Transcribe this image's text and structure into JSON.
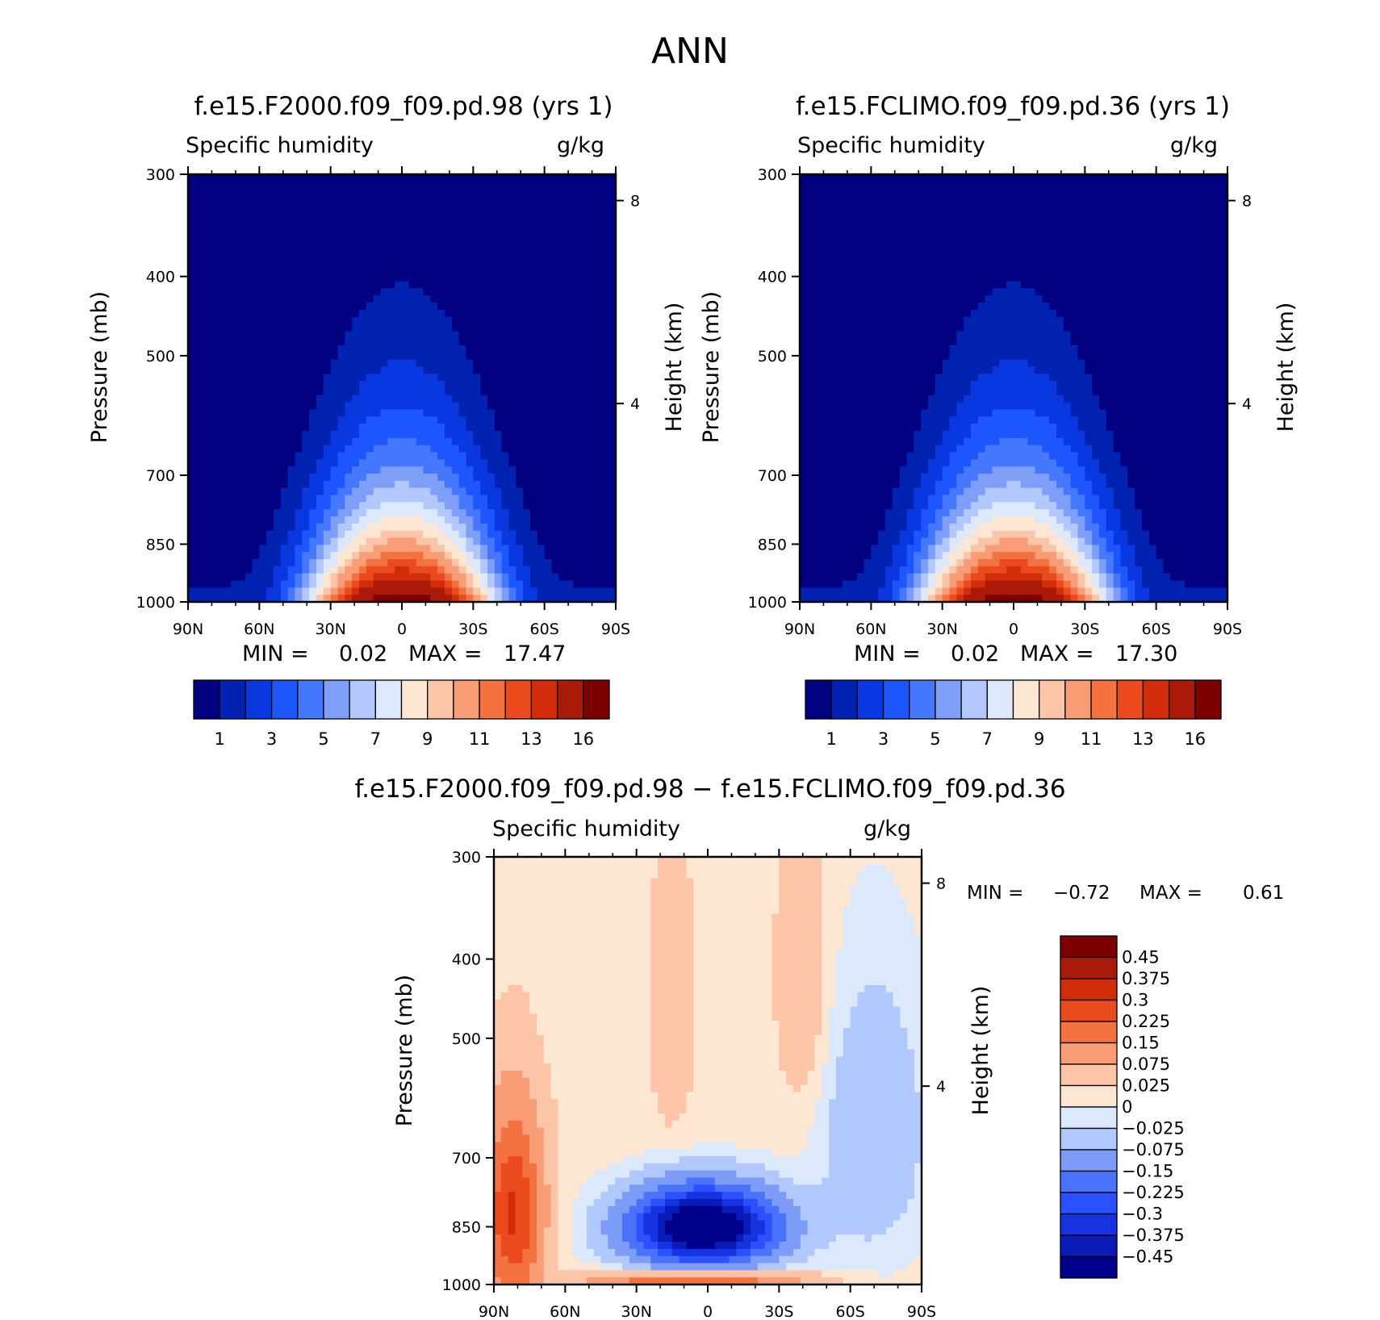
{
  "suptitle": "ANN",
  "panels": [
    {
      "title": "f.e15.F2000.f09_f09.pd.98 (yrs  1)",
      "variable": "Specific humidity",
      "units": "g/kg",
      "left_axis_label": "Pressure (mb)",
      "right_axis_label": "Height (km)",
      "min_label": "MIN =",
      "min_value": "0.02",
      "max_label": "MAX =",
      "max_value": "17.47"
    },
    {
      "title": "f.e15.FCLIMO.f09_f09.pd.36 (yrs  1)",
      "variable": "Specific humidity",
      "units": "g/kg",
      "left_axis_label": "Pressure (mb)",
      "right_axis_label": "Height (km)",
      "min_label": "MIN =",
      "min_value": "0.02",
      "max_label": "MAX =",
      "max_value": "17.30"
    },
    {
      "title": "f.e15.F2000.f09_f09.pd.98 − f.e15.FCLIMO.f09_f09.pd.36",
      "variable": "Specific humidity",
      "units": "g/kg",
      "left_axis_label": "Pressure (mb)",
      "right_axis_label": "Height (km)",
      "min_label": "MIN =",
      "min_value": "−0.72",
      "max_label": "MAX =",
      "max_value": "0.61"
    }
  ],
  "chart_data": [
    {
      "type": "contour",
      "title": "f.e15.F2000.f09_f09.pd.98 (yrs  1)",
      "xlabel": "",
      "ylabel": "Pressure (mb)",
      "y2label": "Height (km)",
      "x_ticks": [
        "90N",
        "60N",
        "30N",
        "0",
        "30S",
        "60S",
        "90S"
      ],
      "y_ticks": [
        "300",
        "400",
        "500",
        "700",
        "850",
        "1000"
      ],
      "y_tick_values": [
        300,
        400,
        500,
        700,
        850,
        1000
      ],
      "y2_ticks": [
        "8",
        "4"
      ],
      "y2_tick_values_km": [
        8,
        4
      ],
      "xlim_lat": [
        90,
        -90
      ],
      "ylim_mb": [
        300,
        1000
      ],
      "yscale": "log",
      "contour_levels": [
        1,
        2,
        3,
        4,
        5,
        6,
        7,
        8,
        9,
        10,
        11,
        12,
        13,
        14,
        16
      ],
      "colorbar_labels": [
        "1",
        "3",
        "5",
        "7",
        "9",
        "11",
        "13",
        "16"
      ],
      "colors": [
        "#000080",
        "#0022b0",
        "#0a38e0",
        "#1d55ff",
        "#4677ff",
        "#7e9ef8",
        "#b2c7fb",
        "#dde9fb",
        "#fde6d2",
        "#fcc5a8",
        "#f99d77",
        "#f4723f",
        "#ea4a1d",
        "#d22c0a",
        "#a91b08",
        "#7d0000"
      ],
      "peak_value": 17.47,
      "peak_lat": 0,
      "peak_pressure_mb": 1000
    },
    {
      "type": "contour",
      "title": "f.e15.FCLIMO.f09_f09.pd.36 (yrs  1)",
      "xlabel": "",
      "ylabel": "Pressure (mb)",
      "y2label": "Height (km)",
      "x_ticks": [
        "90N",
        "60N",
        "30N",
        "0",
        "30S",
        "60S",
        "90S"
      ],
      "y_ticks": [
        "300",
        "400",
        "500",
        "700",
        "850",
        "1000"
      ],
      "y_tick_values": [
        300,
        400,
        500,
        700,
        850,
        1000
      ],
      "y2_ticks": [
        "8",
        "4"
      ],
      "y2_tick_values_km": [
        8,
        4
      ],
      "xlim_lat": [
        90,
        -90
      ],
      "ylim_mb": [
        300,
        1000
      ],
      "yscale": "log",
      "contour_levels": [
        1,
        2,
        3,
        4,
        5,
        6,
        7,
        8,
        9,
        10,
        11,
        12,
        13,
        14,
        16
      ],
      "colorbar_labels": [
        "1",
        "3",
        "5",
        "7",
        "9",
        "11",
        "13",
        "16"
      ],
      "colors": [
        "#000080",
        "#0022b0",
        "#0a38e0",
        "#1d55ff",
        "#4677ff",
        "#7e9ef8",
        "#b2c7fb",
        "#dde9fb",
        "#fde6d2",
        "#fcc5a8",
        "#f99d77",
        "#f4723f",
        "#ea4a1d",
        "#d22c0a",
        "#a91b08",
        "#7d0000"
      ],
      "peak_value": 17.3,
      "peak_lat": 0,
      "peak_pressure_mb": 1000
    },
    {
      "type": "contour",
      "title": "f.e15.F2000.f09_f09.pd.98 − f.e15.FCLIMO.f09_f09.pd.36",
      "xlabel": "",
      "ylabel": "Pressure (mb)",
      "y2label": "Height (km)",
      "x_ticks": [
        "90N",
        "60N",
        "30N",
        "0",
        "30S",
        "60S",
        "90S"
      ],
      "y_ticks": [
        "300",
        "400",
        "500",
        "700",
        "850",
        "1000"
      ],
      "y_tick_values": [
        300,
        400,
        500,
        700,
        850,
        1000
      ],
      "y2_ticks": [
        "8",
        "4"
      ],
      "y2_tick_values_km": [
        8,
        4
      ],
      "xlim_lat": [
        90,
        -90
      ],
      "ylim_mb": [
        300,
        1000
      ],
      "yscale": "log",
      "contour_levels": [
        -0.45,
        -0.375,
        -0.3,
        -0.225,
        -0.15,
        -0.075,
        -0.025,
        0,
        0.025,
        0.075,
        0.15,
        0.225,
        0.3,
        0.375,
        0.45
      ],
      "colorbar_labels": [
        "0.45",
        "0.375",
        "0.3",
        "0.225",
        "0.15",
        "0.075",
        "0.025",
        "0",
        "−0.025",
        "−0.075",
        "−0.15",
        "−0.225",
        "−0.3",
        "−0.375",
        "−0.45"
      ],
      "colors": [
        "#00008a",
        "#0a1cb8",
        "#1533e0",
        "#2a50ff",
        "#4a72fb",
        "#7c9cf7",
        "#b0c8fb",
        "#dbe9fb",
        "#fde6d2",
        "#fcc5a8",
        "#f99d77",
        "#f4723f",
        "#ea4a1d",
        "#d22c0a",
        "#a91b08",
        "#7d0000"
      ]
    }
  ]
}
